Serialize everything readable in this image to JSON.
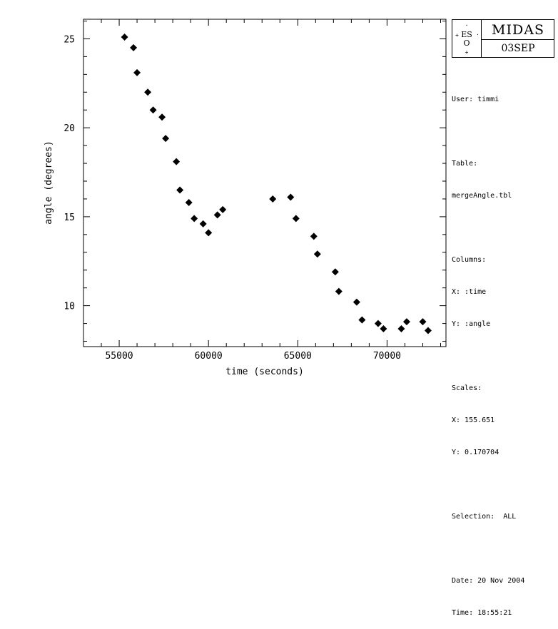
{
  "chart_data": {
    "type": "scatter",
    "xlabel": "time (seconds)",
    "ylabel": "angle (degrees)",
    "xlim": [
      53000,
      73300
    ],
    "ylim": [
      7.7,
      26.1
    ],
    "xticks": [
      55000,
      60000,
      65000,
      70000
    ],
    "yticks": [
      10,
      15,
      20,
      25
    ],
    "grid": false,
    "marker": "diamond",
    "color": "#000000",
    "points": [
      {
        "x": 55300,
        "y": 25.1
      },
      {
        "x": 55800,
        "y": 24.5
      },
      {
        "x": 56000,
        "y": 23.1
      },
      {
        "x": 56600,
        "y": 22.0
      },
      {
        "x": 56900,
        "y": 21.0
      },
      {
        "x": 57400,
        "y": 20.6
      },
      {
        "x": 57600,
        "y": 19.4
      },
      {
        "x": 58200,
        "y": 18.1
      },
      {
        "x": 58400,
        "y": 16.5
      },
      {
        "x": 58900,
        "y": 15.8
      },
      {
        "x": 59200,
        "y": 14.9
      },
      {
        "x": 59700,
        "y": 14.6
      },
      {
        "x": 60000,
        "y": 14.1
      },
      {
        "x": 60500,
        "y": 15.1
      },
      {
        "x": 60800,
        "y": 15.4
      },
      {
        "x": 63600,
        "y": 16.0
      },
      {
        "x": 64600,
        "y": 16.1
      },
      {
        "x": 64900,
        "y": 14.9
      },
      {
        "x": 65900,
        "y": 13.9
      },
      {
        "x": 66100,
        "y": 12.9
      },
      {
        "x": 67100,
        "y": 11.9
      },
      {
        "x": 67300,
        "y": 10.8
      },
      {
        "x": 68300,
        "y": 10.2
      },
      {
        "x": 68600,
        "y": 9.2
      },
      {
        "x": 69500,
        "y": 9.0
      },
      {
        "x": 69800,
        "y": 8.7
      },
      {
        "x": 70800,
        "y": 8.7
      },
      {
        "x": 71100,
        "y": 9.1
      },
      {
        "x": 72000,
        "y": 9.1
      },
      {
        "x": 72300,
        "y": 8.6
      }
    ]
  },
  "logo": {
    "name": "MIDAS",
    "version": "03SEP",
    "eso_text": "ES",
    "eso_o": "O",
    "icon": "eso-logo-icon"
  },
  "info": {
    "user": "User: timmi",
    "table_label": "Table:",
    "table_name": "mergeAngle.tbl",
    "columns_label": "Columns:",
    "column_x": "X: :time",
    "column_y": "Y: :angle",
    "scales_label": "Scales:",
    "scale_x": "X: 155.651",
    "scale_y": "Y: 0.170704",
    "selection": "Selection:  ALL",
    "date": "Date: 20 Nov 2004",
    "time": "Time: 18:55:21"
  }
}
